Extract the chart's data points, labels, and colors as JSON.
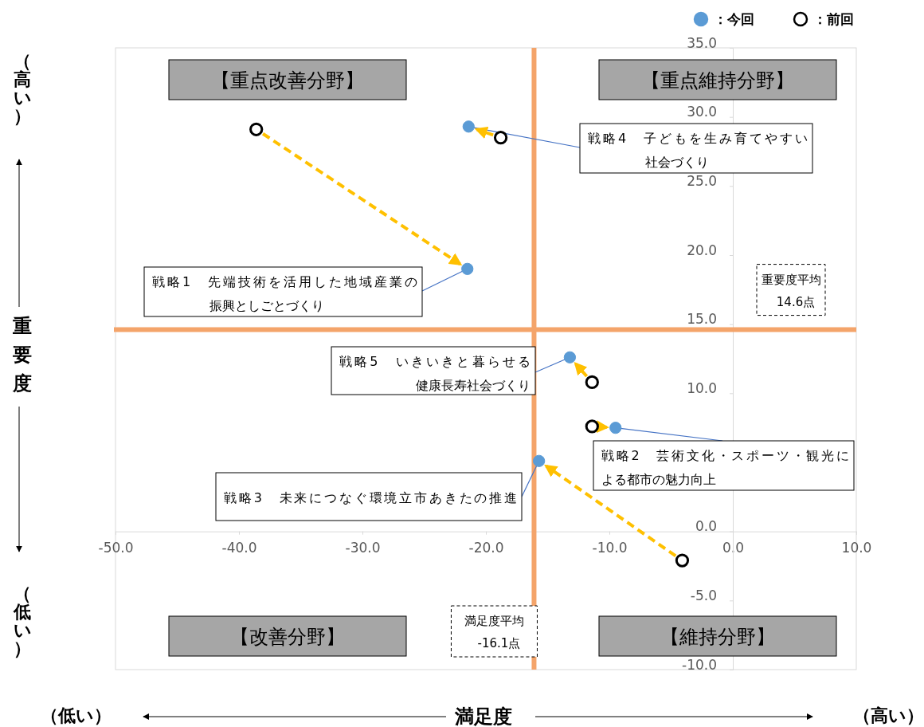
{
  "chart_data": {
    "type": "scatter",
    "xlabel": "満足度",
    "ylabel": "重要度",
    "xlim": [
      -50,
      10
    ],
    "ylim": [
      -10,
      35
    ],
    "xticks": [
      {
        "value": -50,
        "label": "-50.0"
      },
      {
        "value": -40,
        "label": "-40.0"
      },
      {
        "value": -30,
        "label": "-30.0"
      },
      {
        "value": -20,
        "label": "-20.0"
      },
      {
        "value": -10,
        "label": "-10.0"
      },
      {
        "value": 0,
        "label": "0.0"
      },
      {
        "value": 10,
        "label": "10.0"
      }
    ],
    "yticks": [
      {
        "value": -10,
        "label": "-10.0"
      },
      {
        "value": -5,
        "label": "-5.0"
      },
      {
        "value": 0,
        "label": "0.0"
      },
      {
        "value": 10,
        "label": "10.0"
      },
      {
        "value": 15,
        "label": "15.0"
      },
      {
        "value": 20,
        "label": "20.0"
      },
      {
        "value": 25,
        "label": "25.0"
      },
      {
        "value": 30,
        "label": "30.0"
      },
      {
        "value": 35,
        "label": "35.0"
      }
    ],
    "grid": false,
    "legend": "top right",
    "marker": "circle",
    "series": [
      {
        "name": "：今回",
        "color": "#5b9bd5",
        "x": [
          -21.5,
          -9.5,
          -15.7,
          -21.4,
          -13.2
        ],
        "values": [
          19.0,
          7.5,
          5.1,
          29.3,
          12.6
        ]
      },
      {
        "name": "：前回",
        "color": "#ffffff",
        "x": [
          -38.6,
          -11.4,
          -4.1,
          -18.8,
          -11.4
        ],
        "values": [
          29.1,
          7.6,
          -2.1,
          28.5,
          10.8
        ]
      }
    ],
    "ref_lines": [
      {
        "axis": "x",
        "value": -16.1,
        "label": "満足度平均\n-16.1点",
        "color": "#f4a46a"
      },
      {
        "axis": "y",
        "value": 14.6,
        "label": "重要度平均\n14.6点",
        "color": "#f4a46a"
      }
    ],
    "annotations": [
      {
        "text": "戦略1　先端技術を活用した地域産業の振興としごとづくり",
        "x": -21.5,
        "y": 19.0
      },
      {
        "text": "戦略2　芸術文化・スポーツ・観光による都市の魅力向上",
        "x": -9.5,
        "y": 7.5
      },
      {
        "text": "戦略3　未来につなぐ環境立市あきたの推進",
        "x": -15.7,
        "y": 5.1
      },
      {
        "text": "戦略4　子どもを生み育てやすい社会づくり",
        "x": -21.4,
        "y": 29.3
      },
      {
        "text": "戦略5　いきいきと暮らせる健康長寿社会づくり",
        "x": -13.2,
        "y": 12.6
      },
      "【重点改善分野】",
      "【重点維持分野】",
      "【改善分野】",
      "【維持分野】",
      "（高い）",
      "（低い）",
      "（低い）",
      "（高い）"
    ]
  }
}
